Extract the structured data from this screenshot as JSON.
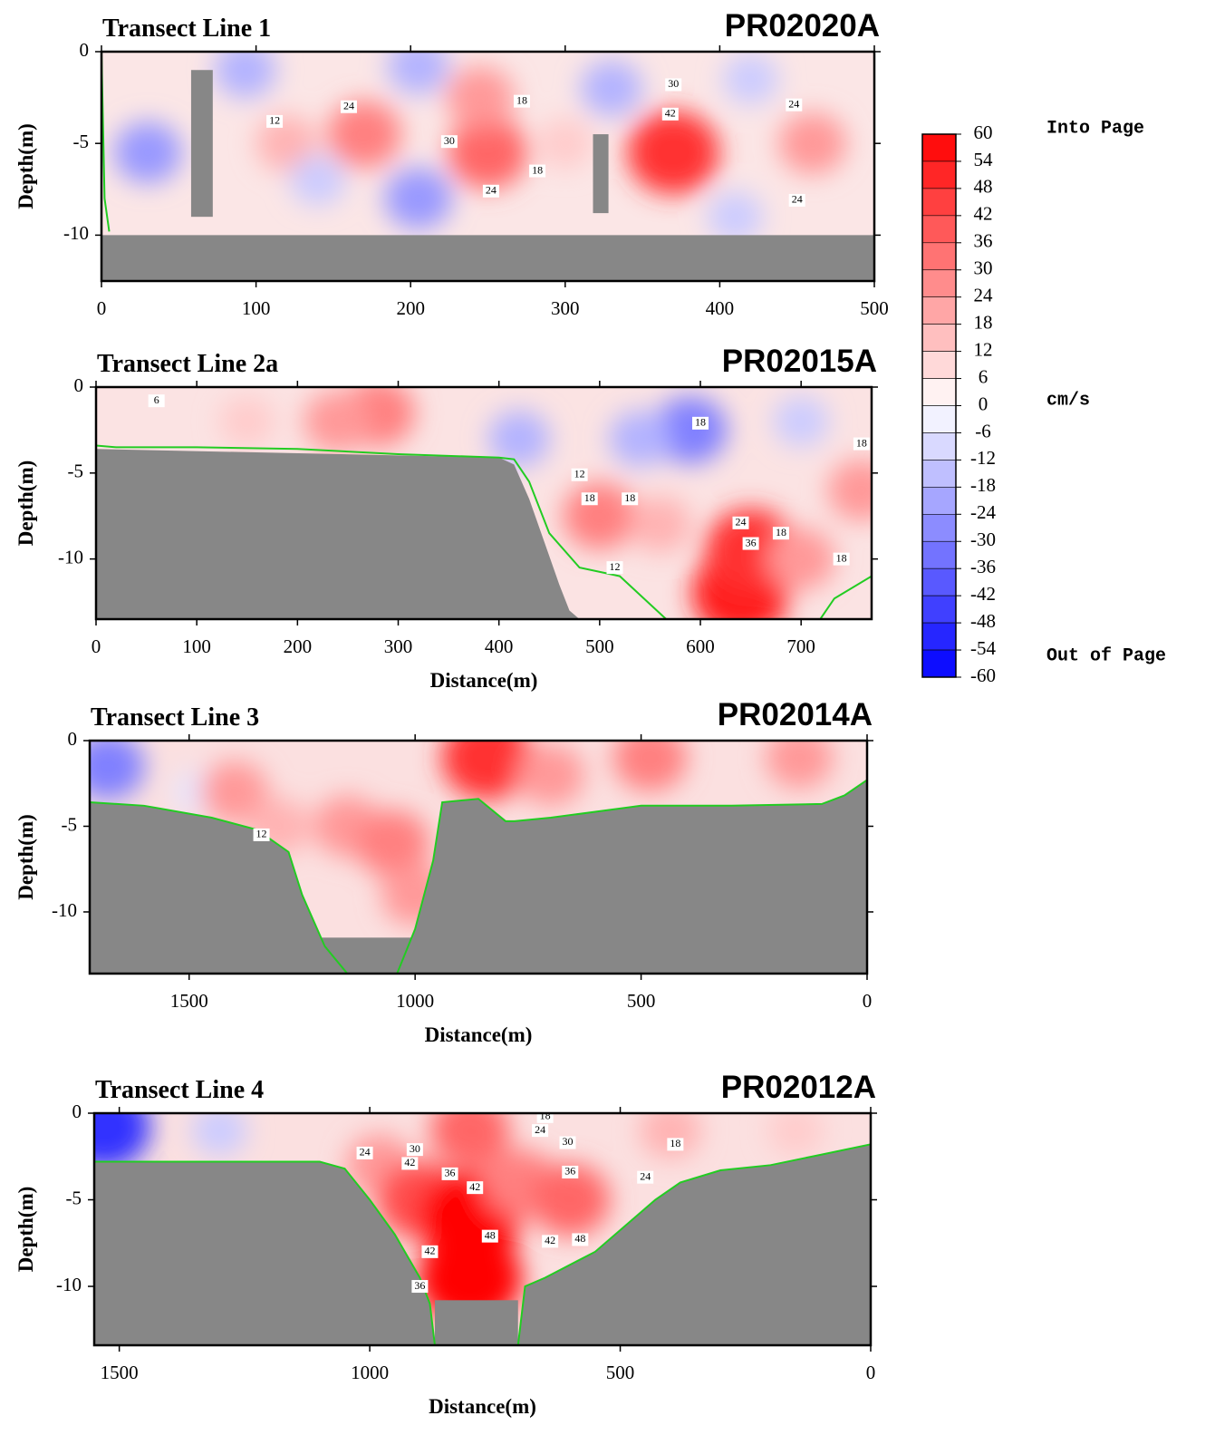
{
  "chart_data": [
    {
      "type": "contour",
      "title": "Transect Line 1",
      "id_label": "PR02020A",
      "ylabel": "Depth(m)",
      "xlim": [
        0,
        500
      ],
      "ylim": [
        -12.5,
        0
      ],
      "xticks": [
        0,
        100,
        200,
        300,
        400,
        500
      ],
      "yticks": [
        0,
        -5,
        -10
      ],
      "background": "#fbe6e6",
      "seabed_color": "#878787",
      "line_color": "#22cc22",
      "seabed": {
        "x": [
          0,
          500
        ],
        "y": [
          -10,
          -10
        ]
      },
      "bottom_line": {
        "x": [
          0,
          1,
          2,
          5
        ],
        "y": [
          0,
          -4,
          -8,
          -9.8
        ]
      },
      "no_data": [
        [
          58,
          72,
          -1,
          -9
        ],
        [
          318,
          328,
          -4.5,
          -8.8
        ]
      ],
      "features": [
        {
          "x": 30,
          "y": -5.5,
          "value": -24
        },
        {
          "x": 93,
          "y": -1,
          "value": -18
        },
        {
          "x": 120,
          "y": -5,
          "value": 18
        },
        {
          "x": 170,
          "y": -4.5,
          "value": 30
        },
        {
          "x": 140,
          "y": -7,
          "value": -12
        },
        {
          "x": 205,
          "y": -8,
          "value": -24
        },
        {
          "x": 205,
          "y": -0.8,
          "value": -18
        },
        {
          "x": 250,
          "y": -5.5,
          "value": 36
        },
        {
          "x": 245,
          "y": -2.5,
          "value": 24
        },
        {
          "x": 300,
          "y": -5,
          "value": 12
        },
        {
          "x": 330,
          "y": -2,
          "value": -18
        },
        {
          "x": 370,
          "y": -5.5,
          "value": 48
        },
        {
          "x": 420,
          "y": -1.5,
          "value": -12
        },
        {
          "x": 410,
          "y": -9,
          "value": -12
        },
        {
          "x": 460,
          "y": -5,
          "value": 24
        }
      ],
      "contour_labels": [
        {
          "x": 112,
          "y": -3.8,
          "value": 12
        },
        {
          "x": 160,
          "y": -3,
          "value": 24
        },
        {
          "x": 225,
          "y": -4.9,
          "value": 30
        },
        {
          "x": 252,
          "y": -7.6,
          "value": 24
        },
        {
          "x": 282,
          "y": -6.5,
          "value": 18
        },
        {
          "x": 368,
          "y": -3.4,
          "value": 42
        },
        {
          "x": 370,
          "y": -1.8,
          "value": 30
        },
        {
          "x": 450,
          "y": -8.1,
          "value": 24
        },
        {
          "x": 448,
          "y": -2.9,
          "value": 24
        },
        {
          "x": 272,
          "y": -2.7,
          "value": 18
        }
      ]
    },
    {
      "type": "contour",
      "title": "Transect Line 2a",
      "id_label": "PR02015A",
      "ylabel": "Depth(m)",
      "xlabel": "Distance(m)",
      "xlim": [
        0,
        770
      ],
      "ylim": [
        -13.5,
        0
      ],
      "xticks": [
        0,
        100,
        200,
        300,
        400,
        500,
        600,
        700
      ],
      "yticks": [
        0,
        -5,
        -10
      ],
      "background": "#fbe3e3",
      "seabed_color": "#878787",
      "line_color": "#22cc22",
      "seabed": {
        "x": [
          0,
          400,
          415,
          430,
          445,
          460,
          470,
          480
        ],
        "y": [
          -3.6,
          -4.1,
          -4.5,
          -6.5,
          -9,
          -11.5,
          -13,
          -13.5
        ]
      },
      "bottom_line": {
        "x": [
          0,
          20,
          100,
          200,
          300,
          400,
          415,
          430,
          450,
          480,
          520,
          566,
          719,
          733,
          770
        ],
        "y": [
          -3.4,
          -3.5,
          -3.5,
          -3.6,
          -3.9,
          -4.1,
          -4.2,
          -5.5,
          -8.5,
          -10.5,
          -11,
          -13.5,
          -13.5,
          -12.3,
          -11
        ]
      },
      "features": [
        {
          "x": 280,
          "y": -1.5,
          "value": 30
        },
        {
          "x": 240,
          "y": -2,
          "value": 24
        },
        {
          "x": 150,
          "y": -2,
          "value": 12
        },
        {
          "x": 420,
          "y": -3,
          "value": -18
        },
        {
          "x": 590,
          "y": -2.5,
          "value": -30
        },
        {
          "x": 540,
          "y": -3,
          "value": -18
        },
        {
          "x": 700,
          "y": -2,
          "value": -12
        },
        {
          "x": 500,
          "y": -7.5,
          "value": 30
        },
        {
          "x": 560,
          "y": -8,
          "value": 18
        },
        {
          "x": 640,
          "y": -12,
          "value": 54
        },
        {
          "x": 650,
          "y": -9.5,
          "value": 48
        },
        {
          "x": 700,
          "y": -10,
          "value": 24
        },
        {
          "x": 760,
          "y": -6,
          "value": 24
        }
      ],
      "contour_labels": [
        {
          "x": 60,
          "y": -0.8,
          "value": 6
        },
        {
          "x": 600,
          "y": -2.1,
          "value": 18
        },
        {
          "x": 480,
          "y": -5.1,
          "value": 12
        },
        {
          "x": 490,
          "y": -6.5,
          "value": 18
        },
        {
          "x": 530,
          "y": -6.5,
          "value": 18
        },
        {
          "x": 640,
          "y": -7.9,
          "value": 24
        },
        {
          "x": 650,
          "y": -9.1,
          "value": 36
        },
        {
          "x": 680,
          "y": -8.5,
          "value": 18
        },
        {
          "x": 740,
          "y": -10,
          "value": 18
        },
        {
          "x": 515,
          "y": -10.5,
          "value": 12
        },
        {
          "x": 760,
          "y": -3.3,
          "value": 18
        }
      ]
    },
    {
      "type": "contour",
      "title": "Transect Line 3",
      "id_label": "PR02014A",
      "ylabel": "Depth(m)",
      "xlabel": "Distance(m)",
      "xlim": [
        1720,
        0
      ],
      "ylim": [
        -13.6,
        0
      ],
      "xticks": [
        1500,
        1000,
        500,
        0
      ],
      "yticks": [
        0,
        -5,
        -10
      ],
      "background": "#fbe0e0",
      "seabed_color": "#878787",
      "line_color": "#22cc22",
      "bottom_line": {
        "x": [
          1720,
          1600,
          1450,
          1350,
          1280,
          1250,
          1200,
          1150,
          1040,
          1000,
          960,
          940,
          900,
          860,
          800,
          780,
          700,
          500,
          300,
          100,
          50,
          0
        ],
        "y": [
          -3.6,
          -3.8,
          -4.5,
          -5.2,
          -6.5,
          -9,
          -12,
          -13.6,
          -13.6,
          -11,
          -7,
          -3.6,
          -3.5,
          -3.4,
          -4.7,
          -4.7,
          -4.5,
          -3.8,
          -3.8,
          -3.7,
          -3.2,
          -2.3
        ]
      },
      "no_data": [
        [
          1250,
          960,
          -11.5,
          -13.6
        ]
      ],
      "features": [
        {
          "x": 1680,
          "y": -1.5,
          "value": -30
        },
        {
          "x": 1480,
          "y": -3,
          "value": -6
        },
        {
          "x": 1400,
          "y": -3,
          "value": 24
        },
        {
          "x": 1300,
          "y": -5,
          "value": 18
        },
        {
          "x": 1150,
          "y": -5,
          "value": 24
        },
        {
          "x": 1050,
          "y": -6,
          "value": 30
        },
        {
          "x": 1000,
          "y": -9,
          "value": 24
        },
        {
          "x": 840,
          "y": -1,
          "value": 48
        },
        {
          "x": 700,
          "y": -2,
          "value": 24
        },
        {
          "x": 480,
          "y": -1,
          "value": 30
        },
        {
          "x": 150,
          "y": -1,
          "value": 24
        }
      ],
      "contour_labels": [
        {
          "x": 1340,
          "y": -5.5,
          "value": 12
        }
      ]
    },
    {
      "type": "contour",
      "title": "Transect Line 4",
      "id_label": "PR02012A",
      "ylabel": "Depth(m)",
      "xlabel": "Distance(m)",
      "xlim": [
        1550,
        0
      ],
      "ylim": [
        -13.4,
        0
      ],
      "xticks": [
        1500,
        1000,
        500,
        0
      ],
      "yticks": [
        0,
        -5,
        -10
      ],
      "background": "#fbe0e0",
      "seabed_color": "#878787",
      "line_color": "#22cc22",
      "bottom_line": {
        "x": [
          1550,
          1100,
          1050,
          1000,
          950,
          900,
          880,
          870,
          704,
          690,
          650,
          550,
          430,
          380,
          300,
          200,
          100,
          0
        ],
        "y": [
          -2.8,
          -2.8,
          -3.2,
          -5,
          -7,
          -9.5,
          -11,
          -13.4,
          -13.4,
          -10,
          -9.5,
          -8,
          -5,
          -4,
          -3.3,
          -3,
          -2.4,
          -1.8
        ]
      },
      "no_data": [
        [
          870,
          704,
          -10.8,
          -13.4
        ]
      ],
      "features": [
        {
          "x": 1530,
          "y": -0.8,
          "value": -48
        },
        {
          "x": 1300,
          "y": -1,
          "value": -12
        },
        {
          "x": 980,
          "y": -3,
          "value": 24
        },
        {
          "x": 900,
          "y": -5,
          "value": 42
        },
        {
          "x": 800,
          "y": -6,
          "value": 60
        },
        {
          "x": 800,
          "y": -9.5,
          "value": 60
        },
        {
          "x": 800,
          "y": -1,
          "value": 36
        },
        {
          "x": 700,
          "y": -4,
          "value": 30
        },
        {
          "x": 600,
          "y": -5,
          "value": 36
        },
        {
          "x": 400,
          "y": -1,
          "value": 18
        },
        {
          "x": 150,
          "y": -1,
          "value": 12
        }
      ],
      "contour_labels": [
        {
          "x": 650,
          "y": -0.2,
          "value": 18
        },
        {
          "x": 660,
          "y": -1,
          "value": 24
        },
        {
          "x": 605,
          "y": -1.7,
          "value": 30
        },
        {
          "x": 1010,
          "y": -2.3,
          "value": 24
        },
        {
          "x": 910,
          "y": -2.1,
          "value": 30
        },
        {
          "x": 920,
          "y": -2.9,
          "value": 42
        },
        {
          "x": 840,
          "y": -3.5,
          "value": 36
        },
        {
          "x": 600,
          "y": -3.4,
          "value": 36
        },
        {
          "x": 790,
          "y": -4.3,
          "value": 42
        },
        {
          "x": 450,
          "y": -3.7,
          "value": 24
        },
        {
          "x": 390,
          "y": -1.8,
          "value": 18
        },
        {
          "x": 640,
          "y": -7.4,
          "value": 42
        },
        {
          "x": 580,
          "y": -7.3,
          "value": 48
        },
        {
          "x": 760,
          "y": -7.1,
          "value": 48
        },
        {
          "x": 880,
          "y": -8,
          "value": 42
        },
        {
          "x": 900,
          "y": -10,
          "value": 36
        }
      ]
    }
  ],
  "colorbar": {
    "lim": [
      -60,
      60
    ],
    "colors": [
      "#0000ff",
      "#ffffff",
      "#ff0000"
    ],
    "ticks": [
      60,
      54,
      48,
      42,
      36,
      30,
      24,
      18,
      12,
      6,
      0,
      -6,
      -12,
      -18,
      -24,
      -30,
      -36,
      -42,
      -48,
      -54,
      -60
    ],
    "top_label": "Into Page",
    "unit": "cm/s",
    "bottom_label": "Out of Page"
  }
}
